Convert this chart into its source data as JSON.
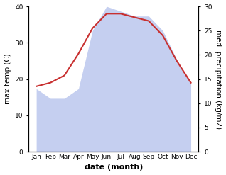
{
  "months": [
    "Jan",
    "Feb",
    "Mar",
    "Apr",
    "May",
    "Jun",
    "Jul",
    "Aug",
    "Sep",
    "Oct",
    "Nov",
    "Dec"
  ],
  "max_temp": [
    18,
    19,
    21,
    27,
    34,
    38,
    38,
    37,
    36,
    32,
    25,
    19
  ],
  "precipitation": [
    13,
    11,
    11,
    13,
    25,
    30,
    29,
    28,
    28,
    25,
    19,
    14
  ],
  "temp_color": "#c83030",
  "precip_fill_color": "#c5cff0",
  "left_ylabel": "max temp (C)",
  "right_ylabel": "med. precipitation (kg/m2)",
  "xlabel": "date (month)",
  "left_ylim": [
    0,
    40
  ],
  "right_ylim": [
    0,
    30
  ],
  "left_yticks": [
    0,
    10,
    20,
    30,
    40
  ],
  "right_yticks": [
    0,
    5,
    10,
    15,
    20,
    25,
    30
  ],
  "label_fontsize": 7.5,
  "tick_fontsize": 6.5,
  "xlabel_fontsize": 8
}
